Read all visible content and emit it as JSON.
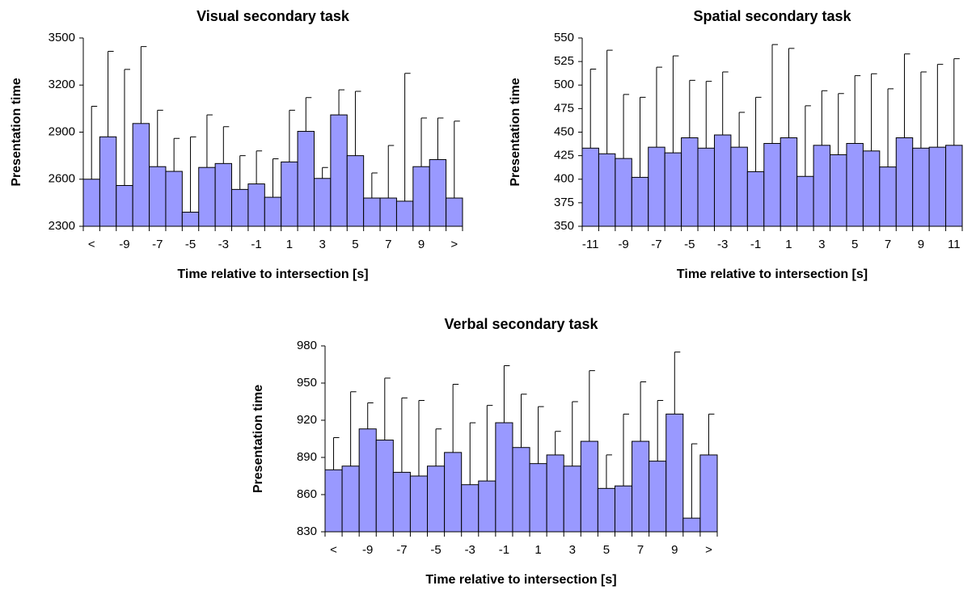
{
  "chart_data": [
    {
      "type": "bar",
      "title": "Visual secondary task",
      "xlabel": "Time relative to intersection [s]",
      "ylabel": "Presentation time",
      "categories": [
        "<",
        null,
        "-9",
        null,
        "-7",
        null,
        "-5",
        null,
        "-3",
        null,
        "-1",
        null,
        "1",
        null,
        "3",
        null,
        "5",
        null,
        "7",
        null,
        "9",
        null,
        ">"
      ],
      "values": [
        2600,
        2870,
        2560,
        2955,
        2680,
        2650,
        2390,
        2675,
        2700,
        2535,
        2570,
        2485,
        2710,
        2905,
        2605,
        3010,
        2750,
        2480,
        2480,
        2460,
        2680,
        2725,
        2480
      ],
      "errors": [
        465,
        545,
        740,
        490,
        360,
        210,
        480,
        335,
        235,
        215,
        210,
        245,
        330,
        215,
        70,
        160,
        410,
        160,
        335,
        815,
        310,
        265,
        490
      ],
      "color": "#9999ff",
      "ylim": [
        2300,
        3500
      ],
      "yticks": [
        2300,
        2600,
        2900,
        3200,
        3500
      ]
    },
    {
      "type": "bar",
      "title": "Spatial secondary task",
      "xlabel": "Time relative to intersection [s]",
      "ylabel": "Presentation time",
      "categories": [
        "-11",
        null,
        "-9",
        null,
        "-7",
        null,
        "-5",
        null,
        "-3",
        null,
        "-1",
        null,
        "1",
        null,
        "3",
        null,
        "5",
        null,
        "7",
        null,
        "9",
        null,
        "11"
      ],
      "values": [
        433,
        427,
        422,
        402,
        434,
        428,
        444,
        433,
        447,
        434,
        408,
        438,
        444,
        403,
        436,
        426,
        438,
        430,
        413,
        444,
        433,
        434,
        436
      ],
      "errors": [
        84,
        110,
        68,
        85,
        85,
        103,
        61,
        71,
        67,
        37,
        79,
        105,
        95,
        75,
        58,
        65,
        72,
        82,
        83,
        89,
        81,
        88,
        92
      ],
      "color": "#9999ff",
      "ylim": [
        350,
        550
      ],
      "yticks": [
        350,
        375,
        400,
        425,
        450,
        475,
        500,
        525,
        550
      ]
    },
    {
      "type": "bar",
      "title": "Verbal secondary task",
      "xlabel": "Time relative to intersection [s]",
      "ylabel": "Presentation time",
      "categories": [
        "<",
        null,
        "-9",
        null,
        "-7",
        null,
        "-5",
        null,
        "-3",
        null,
        "-1",
        null,
        "1",
        null,
        "3",
        null,
        "5",
        null,
        "7",
        null,
        "9",
        null,
        ">"
      ],
      "values": [
        880,
        883,
        913,
        904,
        878,
        875,
        883,
        894,
        868,
        871,
        918,
        898,
        885,
        892,
        883,
        903,
        865,
        867,
        903,
        887,
        925,
        841,
        892
      ],
      "errors": [
        26,
        60,
        21,
        50,
        60,
        61,
        30,
        55,
        50,
        61,
        46,
        43,
        46,
        19,
        52,
        57,
        27,
        58,
        48,
        49,
        50,
        60,
        33
      ],
      "color": "#9999ff",
      "ylim": [
        830,
        980
      ],
      "yticks": [
        830,
        860,
        890,
        920,
        950,
        980
      ]
    }
  ]
}
